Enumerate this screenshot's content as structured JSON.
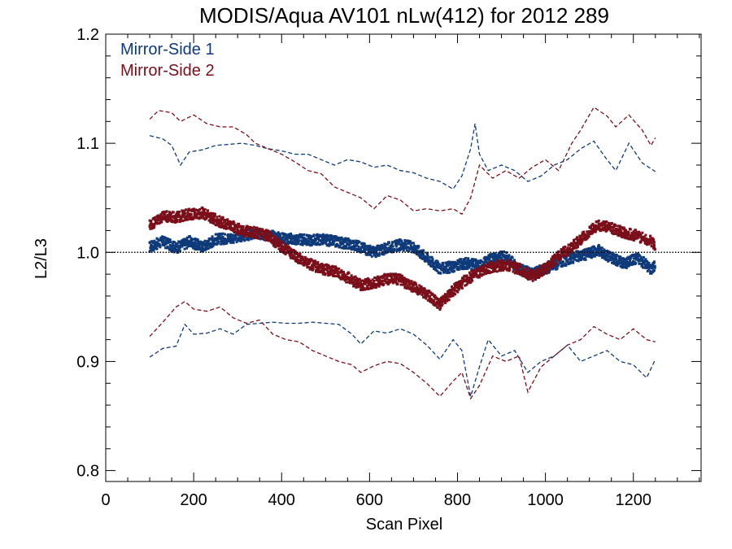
{
  "chart_data": {
    "type": "scatter",
    "title": "MODIS/Aqua AV101 nLw(412) for 2012 289",
    "xlabel": "Scan Pixel",
    "ylabel": "L2/L3",
    "xlim": [
      0,
      1354
    ],
    "ylim": [
      0.79,
      1.2
    ],
    "x_ticks": [
      0,
      200,
      400,
      600,
      800,
      1000,
      1200
    ],
    "x_tick_labels": [
      "0",
      "200",
      "400",
      "600",
      "800",
      "1000",
      "1200"
    ],
    "y_ticks": [
      0.8,
      0.9,
      1.0,
      1.1,
      1.2
    ],
    "y_tick_labels": [
      "0.8",
      "0.9",
      "1.0",
      "1.1",
      "1.2"
    ],
    "reference_line": {
      "y": 1.0,
      "style": "dotted",
      "color": "#000000"
    },
    "legend_position": "top-left",
    "series": [
      {
        "name": "Mirror-Side 1",
        "color": "#0f3a7a",
        "mean": [
          [
            100,
            1.005
          ],
          [
            130,
            1.01
          ],
          [
            160,
            1.004
          ],
          [
            190,
            1.01
          ],
          [
            220,
            1.005
          ],
          [
            250,
            1.012
          ],
          [
            280,
            1.013
          ],
          [
            310,
            1.015
          ],
          [
            340,
            1.017
          ],
          [
            370,
            1.016
          ],
          [
            400,
            1.013
          ],
          [
            430,
            1.012
          ],
          [
            460,
            1.011
          ],
          [
            490,
            1.012
          ],
          [
            520,
            1.01
          ],
          [
            550,
            1.008
          ],
          [
            580,
            1.005
          ],
          [
            610,
            1.0
          ],
          [
            640,
            1.004
          ],
          [
            670,
            1.007
          ],
          [
            700,
            1.005
          ],
          [
            730,
            0.995
          ],
          [
            760,
            0.985
          ],
          [
            790,
            0.987
          ],
          [
            820,
            0.99
          ],
          [
            850,
            0.988
          ],
          [
            880,
            0.995
          ],
          [
            910,
            0.996
          ],
          [
            940,
            0.985
          ],
          [
            970,
            0.98
          ],
          [
            1000,
            0.985
          ],
          [
            1030,
            0.99
          ],
          [
            1060,
            0.995
          ],
          [
            1090,
            0.998
          ],
          [
            1120,
            1.002
          ],
          [
            1150,
            0.995
          ],
          [
            1180,
            0.99
          ],
          [
            1210,
            0.995
          ],
          [
            1240,
            0.985
          ],
          [
            1250,
            0.988
          ]
        ],
        "upper": [
          [
            100,
            1.107
          ],
          [
            130,
            1.104
          ],
          [
            150,
            1.098
          ],
          [
            170,
            1.08
          ],
          [
            190,
            1.092
          ],
          [
            220,
            1.094
          ],
          [
            250,
            1.098
          ],
          [
            280,
            1.099
          ],
          [
            310,
            1.1
          ],
          [
            340,
            1.098
          ],
          [
            370,
            1.095
          ],
          [
            400,
            1.093
          ],
          [
            430,
            1.09
          ],
          [
            460,
            1.09
          ],
          [
            490,
            1.085
          ],
          [
            520,
            1.08
          ],
          [
            550,
            1.085
          ],
          [
            580,
            1.083
          ],
          [
            610,
            1.078
          ],
          [
            640,
            1.08
          ],
          [
            670,
            1.075
          ],
          [
            700,
            1.073
          ],
          [
            730,
            1.068
          ],
          [
            760,
            1.065
          ],
          [
            790,
            1.058
          ],
          [
            810,
            1.07
          ],
          [
            830,
            1.095
          ],
          [
            840,
            1.118
          ],
          [
            850,
            1.09
          ],
          [
            870,
            1.075
          ],
          [
            900,
            1.08
          ],
          [
            930,
            1.075
          ],
          [
            960,
            1.065
          ],
          [
            990,
            1.07
          ],
          [
            1020,
            1.08
          ],
          [
            1050,
            1.085
          ],
          [
            1080,
            1.095
          ],
          [
            1110,
            1.102
          ],
          [
            1140,
            1.085
          ],
          [
            1160,
            1.075
          ],
          [
            1190,
            1.1
          ],
          [
            1220,
            1.082
          ],
          [
            1250,
            1.074
          ]
        ],
        "lower": [
          [
            100,
            0.904
          ],
          [
            130,
            0.912
          ],
          [
            160,
            0.914
          ],
          [
            180,
            0.934
          ],
          [
            200,
            0.925
          ],
          [
            230,
            0.926
          ],
          [
            260,
            0.93
          ],
          [
            290,
            0.925
          ],
          [
            320,
            0.934
          ],
          [
            350,
            0.935
          ],
          [
            380,
            0.936
          ],
          [
            410,
            0.935
          ],
          [
            440,
            0.935
          ],
          [
            470,
            0.936
          ],
          [
            500,
            0.935
          ],
          [
            530,
            0.934
          ],
          [
            560,
            0.925
          ],
          [
            580,
            0.916
          ],
          [
            610,
            0.928
          ],
          [
            640,
            0.926
          ],
          [
            670,
            0.93
          ],
          [
            700,
            0.925
          ],
          [
            730,
            0.915
          ],
          [
            760,
            0.902
          ],
          [
            790,
            0.92
          ],
          [
            810,
            0.91
          ],
          [
            830,
            0.868
          ],
          [
            850,
            0.895
          ],
          [
            870,
            0.92
          ],
          [
            900,
            0.905
          ],
          [
            930,
            0.91
          ],
          [
            960,
            0.89
          ],
          [
            990,
            0.9
          ],
          [
            1020,
            0.905
          ],
          [
            1050,
            0.915
          ],
          [
            1080,
            0.9
          ],
          [
            1110,
            0.905
          ],
          [
            1140,
            0.91
          ],
          [
            1170,
            0.9
          ],
          [
            1200,
            0.897
          ],
          [
            1230,
            0.885
          ],
          [
            1250,
            0.902
          ]
        ]
      },
      {
        "name": "Mirror-Side 2",
        "color": "#7a0f1a",
        "mean": [
          [
            100,
            1.025
          ],
          [
            130,
            1.033
          ],
          [
            160,
            1.032
          ],
          [
            190,
            1.035
          ],
          [
            220,
            1.036
          ],
          [
            250,
            1.03
          ],
          [
            280,
            1.025
          ],
          [
            310,
            1.02
          ],
          [
            340,
            1.018
          ],
          [
            370,
            1.015
          ],
          [
            400,
            1.005
          ],
          [
            430,
            0.997
          ],
          [
            460,
            0.99
          ],
          [
            490,
            0.985
          ],
          [
            520,
            0.983
          ],
          [
            550,
            0.977
          ],
          [
            580,
            0.97
          ],
          [
            610,
            0.972
          ],
          [
            640,
            0.976
          ],
          [
            670,
            0.975
          ],
          [
            700,
            0.968
          ],
          [
            730,
            0.962
          ],
          [
            760,
            0.952
          ],
          [
            790,
            0.965
          ],
          [
            820,
            0.975
          ],
          [
            850,
            0.982
          ],
          [
            880,
            0.987
          ],
          [
            910,
            0.988
          ],
          [
            940,
            0.985
          ],
          [
            970,
            0.978
          ],
          [
            1000,
            0.985
          ],
          [
            1030,
            0.997
          ],
          [
            1060,
            1.005
          ],
          [
            1090,
            1.015
          ],
          [
            1120,
            1.025
          ],
          [
            1150,
            1.022
          ],
          [
            1180,
            1.018
          ],
          [
            1210,
            1.015
          ],
          [
            1240,
            1.01
          ],
          [
            1250,
            1.007
          ]
        ],
        "upper": [
          [
            100,
            1.122
          ],
          [
            120,
            1.13
          ],
          [
            150,
            1.128
          ],
          [
            170,
            1.12
          ],
          [
            200,
            1.126
          ],
          [
            230,
            1.118
          ],
          [
            260,
            1.115
          ],
          [
            290,
            1.115
          ],
          [
            320,
            1.108
          ],
          [
            340,
            1.1
          ],
          [
            370,
            1.095
          ],
          [
            400,
            1.09
          ],
          [
            430,
            1.083
          ],
          [
            460,
            1.075
          ],
          [
            490,
            1.072
          ],
          [
            520,
            1.06
          ],
          [
            550,
            1.055
          ],
          [
            580,
            1.05
          ],
          [
            610,
            1.04
          ],
          [
            640,
            1.052
          ],
          [
            670,
            1.048
          ],
          [
            700,
            1.038
          ],
          [
            730,
            1.04
          ],
          [
            760,
            1.038
          ],
          [
            790,
            1.04
          ],
          [
            810,
            1.035
          ],
          [
            830,
            1.05
          ],
          [
            850,
            1.08
          ],
          [
            880,
            1.068
          ],
          [
            910,
            1.075
          ],
          [
            940,
            1.068
          ],
          [
            970,
            1.078
          ],
          [
            1000,
            1.085
          ],
          [
            1030,
            1.075
          ],
          [
            1060,
            1.1
          ],
          [
            1080,
            1.112
          ],
          [
            1110,
            1.133
          ],
          [
            1140,
            1.125
          ],
          [
            1160,
            1.115
          ],
          [
            1190,
            1.126
          ],
          [
            1220,
            1.112
          ],
          [
            1240,
            1.098
          ],
          [
            1250,
            1.105
          ]
        ],
        "lower": [
          [
            100,
            0.923
          ],
          [
            130,
            0.936
          ],
          [
            160,
            0.95
          ],
          [
            180,
            0.955
          ],
          [
            200,
            0.948
          ],
          [
            230,
            0.946
          ],
          [
            260,
            0.95
          ],
          [
            290,
            0.94
          ],
          [
            320,
            0.935
          ],
          [
            350,
            0.938
          ],
          [
            380,
            0.925
          ],
          [
            410,
            0.92
          ],
          [
            440,
            0.918
          ],
          [
            470,
            0.91
          ],
          [
            500,
            0.905
          ],
          [
            530,
            0.9
          ],
          [
            560,
            0.897
          ],
          [
            580,
            0.89
          ],
          [
            610,
            0.896
          ],
          [
            640,
            0.9
          ],
          [
            670,
            0.898
          ],
          [
            700,
            0.89
          ],
          [
            730,
            0.88
          ],
          [
            760,
            0.868
          ],
          [
            790,
            0.882
          ],
          [
            810,
            0.89
          ],
          [
            830,
            0.866
          ],
          [
            850,
            0.878
          ],
          [
            880,
            0.905
          ],
          [
            910,
            0.9
          ],
          [
            940,
            0.905
          ],
          [
            960,
            0.872
          ],
          [
            990,
            0.895
          ],
          [
            1020,
            0.905
          ],
          [
            1050,
            0.915
          ],
          [
            1080,
            0.92
          ],
          [
            1110,
            0.932
          ],
          [
            1140,
            0.925
          ],
          [
            1170,
            0.92
          ],
          [
            1200,
            0.93
          ],
          [
            1230,
            0.92
          ],
          [
            1250,
            0.918
          ]
        ]
      }
    ]
  }
}
